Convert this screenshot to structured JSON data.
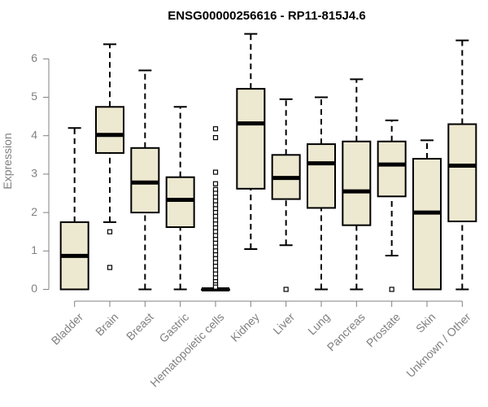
{
  "colors": {
    "box_fill": "#ede8d0",
    "stroke": "#000000",
    "axis": "#808080",
    "text_axis": "#808080",
    "title": "#000000"
  },
  "chart_data": {
    "type": "box",
    "title": "ENSG00000256616 - RP11-815J4.6",
    "xlabel": "",
    "ylabel": "Expression",
    "ylim": [
      0,
      6.7
    ],
    "yticks": [
      0,
      1,
      2,
      3,
      4,
      5,
      6
    ],
    "grid": false,
    "categories": [
      "Bladder",
      "Brain",
      "Breast",
      "Gastric",
      "Hematopoietic cells",
      "Kidney",
      "Liver",
      "Lung",
      "Pancreas",
      "Prostate",
      "Skin",
      "Unknown / Other"
    ],
    "boxes": [
      {
        "category": "Bladder",
        "whisker_low": 0,
        "q1": 0,
        "median": 0.87,
        "q3": 1.75,
        "whisker_high": 4.2,
        "outliers": []
      },
      {
        "category": "Brain",
        "whisker_low": 1.75,
        "q1": 3.55,
        "median": 4.02,
        "q3": 4.75,
        "whisker_high": 6.38,
        "outliers": [
          1.5,
          0.57
        ]
      },
      {
        "category": "Breast",
        "whisker_low": 0,
        "q1": 2.0,
        "median": 2.78,
        "q3": 3.68,
        "whisker_high": 5.7,
        "outliers": []
      },
      {
        "category": "Gastric",
        "whisker_low": 0,
        "q1": 1.62,
        "median": 2.33,
        "q3": 2.92,
        "whisker_high": 4.75,
        "outliers": []
      },
      {
        "category": "Hematopoietic cells",
        "whisker_low": 0,
        "q1": 0,
        "median": 0,
        "q3": 0,
        "whisker_high": 0,
        "outliers": [
          4.18,
          3.95,
          3.05,
          2.75,
          2.6,
          2.5,
          2.4,
          2.3,
          2.2,
          2.1,
          2.0,
          1.9,
          1.8,
          1.7,
          1.6,
          1.5,
          1.4,
          1.3,
          1.2,
          1.1,
          1.0,
          0.9,
          0.8,
          0.7,
          0.6,
          0.5,
          0.4,
          0.3,
          0.2,
          0.12,
          0.06
        ]
      },
      {
        "category": "Kidney",
        "whisker_low": 1.05,
        "q1": 2.62,
        "median": 4.32,
        "q3": 5.22,
        "whisker_high": 6.65,
        "outliers": []
      },
      {
        "category": "Liver",
        "whisker_low": 1.15,
        "q1": 2.35,
        "median": 2.9,
        "q3": 3.5,
        "whisker_high": 4.95,
        "outliers": [
          0
        ]
      },
      {
        "category": "Lung",
        "whisker_low": 0,
        "q1": 2.12,
        "median": 3.28,
        "q3": 3.78,
        "whisker_high": 5.0,
        "outliers": []
      },
      {
        "category": "Pancreas",
        "whisker_low": 0,
        "q1": 1.67,
        "median": 2.55,
        "q3": 3.85,
        "whisker_high": 5.47,
        "outliers": []
      },
      {
        "category": "Prostate",
        "whisker_low": 0.88,
        "q1": 2.42,
        "median": 3.25,
        "q3": 3.85,
        "whisker_high": 4.4,
        "outliers": [
          0
        ]
      },
      {
        "category": "Skin",
        "whisker_low": 0,
        "q1": 0,
        "median": 2.0,
        "q3": 3.4,
        "whisker_high": 3.88,
        "outliers": []
      },
      {
        "category": "Unknown / Other",
        "whisker_low": 0,
        "q1": 1.77,
        "median": 3.22,
        "q3": 4.3,
        "whisker_high": 6.48,
        "outliers": []
      }
    ]
  }
}
